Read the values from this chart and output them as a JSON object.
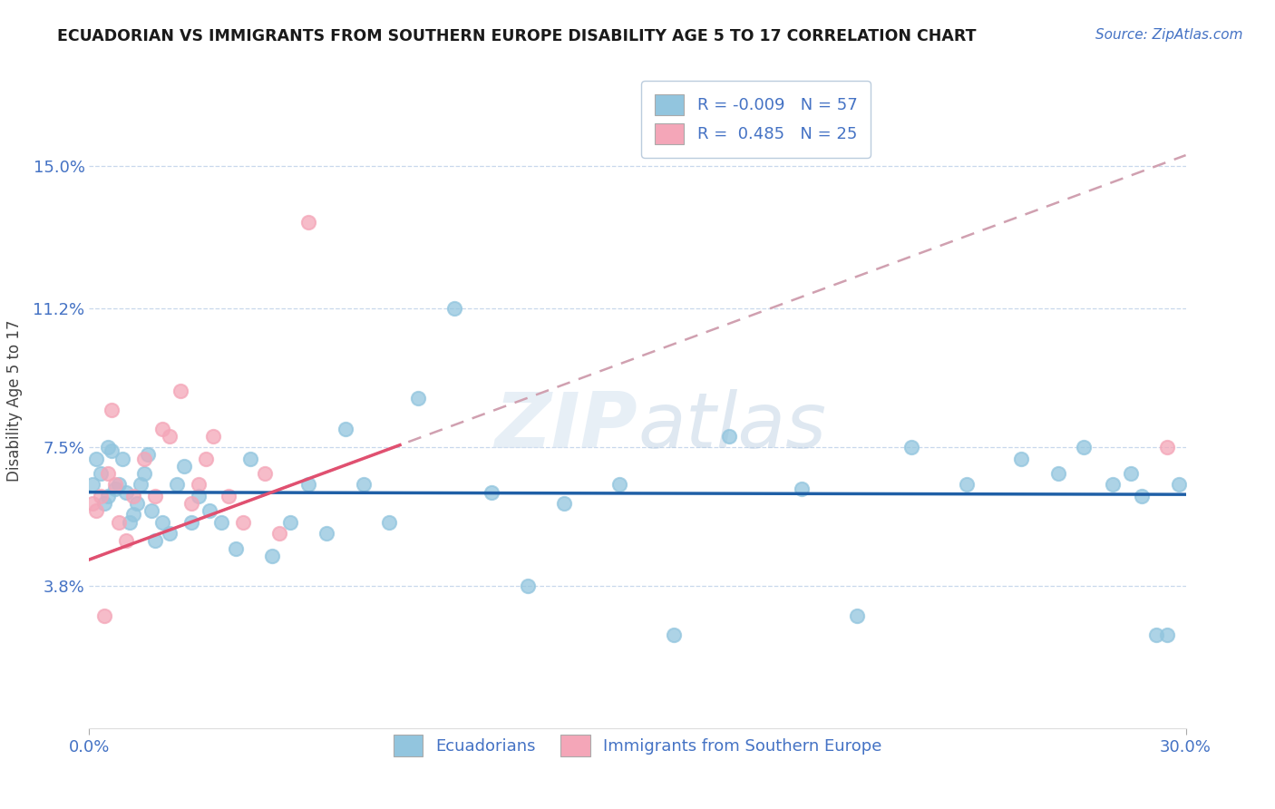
{
  "title": "ECUADORIAN VS IMMIGRANTS FROM SOUTHERN EUROPE DISABILITY AGE 5 TO 17 CORRELATION CHART",
  "source_text": "Source: ZipAtlas.com",
  "ylabel": "Disability Age 5 to 17",
  "xmin": 0.0,
  "xmax": 0.3,
  "ymin": 0.0,
  "ymax": 0.175,
  "yticks": [
    0.038,
    0.075,
    0.112,
    0.15
  ],
  "ytick_labels": [
    "3.8%",
    "7.5%",
    "11.2%",
    "15.0%"
  ],
  "xtick_vals": [
    0.0,
    0.3
  ],
  "xtick_labels": [
    "0.0%",
    "30.0%"
  ],
  "watermark": "ZIPatlas",
  "legend_R1": "-0.009",
  "legend_N1": "57",
  "legend_R2": "0.485",
  "legend_N2": "25",
  "color_blue": "#92c5de",
  "color_pink": "#f4a6b8",
  "line_blue": "#1f5fa6",
  "line_pink": "#e05070",
  "line_dashed_color": "#d0a0b0",
  "blue_line_y_intercept": 0.063,
  "blue_line_slope": -0.002,
  "pink_line_y_intercept": 0.045,
  "pink_line_slope": 0.36,
  "ecu_x": [
    0.001,
    0.002,
    0.003,
    0.004,
    0.005,
    0.005,
    0.006,
    0.007,
    0.008,
    0.009,
    0.01,
    0.011,
    0.012,
    0.013,
    0.014,
    0.015,
    0.016,
    0.017,
    0.018,
    0.02,
    0.022,
    0.024,
    0.026,
    0.028,
    0.03,
    0.033,
    0.036,
    0.04,
    0.044,
    0.05,
    0.055,
    0.06,
    0.065,
    0.07,
    0.075,
    0.082,
    0.09,
    0.1,
    0.11,
    0.12,
    0.13,
    0.145,
    0.16,
    0.175,
    0.195,
    0.21,
    0.225,
    0.24,
    0.255,
    0.265,
    0.272,
    0.28,
    0.285,
    0.288,
    0.292,
    0.295,
    0.298
  ],
  "ecu_y": [
    0.065,
    0.072,
    0.068,
    0.06,
    0.075,
    0.062,
    0.074,
    0.064,
    0.065,
    0.072,
    0.063,
    0.055,
    0.057,
    0.06,
    0.065,
    0.068,
    0.073,
    0.058,
    0.05,
    0.055,
    0.052,
    0.065,
    0.07,
    0.055,
    0.062,
    0.058,
    0.055,
    0.048,
    0.072,
    0.046,
    0.055,
    0.065,
    0.052,
    0.08,
    0.065,
    0.055,
    0.088,
    0.112,
    0.063,
    0.038,
    0.06,
    0.065,
    0.025,
    0.078,
    0.064,
    0.03,
    0.075,
    0.065,
    0.072,
    0.068,
    0.075,
    0.065,
    0.068,
    0.062,
    0.025,
    0.025,
    0.065
  ],
  "se_x": [
    0.001,
    0.002,
    0.003,
    0.004,
    0.005,
    0.006,
    0.007,
    0.008,
    0.01,
    0.012,
    0.015,
    0.018,
    0.02,
    0.022,
    0.025,
    0.028,
    0.03,
    0.032,
    0.034,
    0.038,
    0.042,
    0.048,
    0.052,
    0.06,
    0.295
  ],
  "se_y": [
    0.06,
    0.058,
    0.062,
    0.03,
    0.068,
    0.085,
    0.065,
    0.055,
    0.05,
    0.062,
    0.072,
    0.062,
    0.08,
    0.078,
    0.09,
    0.06,
    0.065,
    0.072,
    0.078,
    0.062,
    0.055,
    0.068,
    0.052,
    0.135,
    0.075
  ]
}
